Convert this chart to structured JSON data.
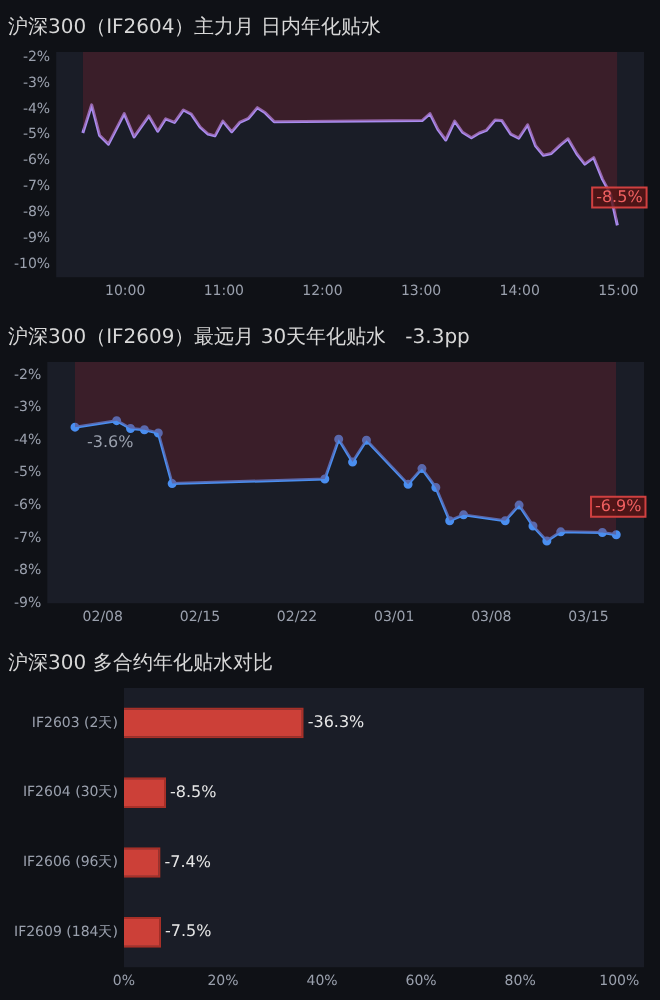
{
  "chart_data": [
    {
      "type": "area",
      "title": "沪深300（IF2604）主力月 日内年化贴水",
      "marker": "none",
      "x": [
        9.57,
        9.66,
        9.74,
        9.83,
        9.99,
        10.09,
        10.24,
        10.33,
        10.41,
        10.5,
        10.59,
        10.67,
        10.76,
        10.84,
        10.91,
        10.99,
        11.08,
        11.16,
        11.25,
        11.34,
        11.42,
        11.51,
        13.01,
        13.09,
        13.17,
        13.25,
        13.34,
        13.42,
        13.51,
        13.59,
        13.66,
        13.75,
        13.82,
        13.91,
        13.99,
        14.08,
        14.16,
        14.24,
        14.32,
        14.41,
        14.49,
        14.58,
        14.66,
        14.75,
        14.84,
        14.92,
        14.99
      ],
      "series": [
        {
          "type": "area",
          "color": "#78232d",
          "values": [
            -4.93,
            -3.84,
            -5.02,
            -5.36,
            -4.18,
            -5.08,
            -4.27,
            -4.86,
            -4.38,
            -4.52,
            -4.04,
            -4.2,
            -4.7,
            -4.97,
            -5.04,
            -4.47,
            -4.88,
            -4.52,
            -4.36,
            -3.95,
            -4.15,
            -4.49,
            -4.45,
            -4.18,
            -4.79,
            -5.2,
            -4.47,
            -4.9,
            -5.11,
            -4.93,
            -4.83,
            -4.43,
            -4.45,
            -4.97,
            -5.13,
            -4.61,
            -5.42,
            -5.79,
            -5.72,
            -5.4,
            -5.15,
            -5.74,
            -6.13,
            -5.88,
            -6.72,
            -7.28,
            -8.5
          ]
        },
        {
          "type": "line",
          "color": "#a98cf0",
          "values": [
            -4.93,
            -3.84,
            -5.02,
            -5.36,
            -4.18,
            -5.08,
            -4.27,
            -4.86,
            -4.38,
            -4.52,
            -4.04,
            -4.2,
            -4.7,
            -4.97,
            -5.04,
            -4.47,
            -4.88,
            -4.52,
            -4.36,
            -3.95,
            -4.15,
            -4.49,
            -4.45,
            -4.18,
            -4.79,
            -5.2,
            -4.47,
            -4.9,
            -5.11,
            -4.93,
            -4.83,
            -4.43,
            -4.45,
            -4.97,
            -5.13,
            -4.61,
            -5.42,
            -5.79,
            -5.72,
            -5.4,
            -5.15,
            -5.74,
            -6.13,
            -5.88,
            -6.72,
            -7.28,
            -8.5
          ],
          "value_labels": [
            null,
            null,
            null,
            null,
            null,
            null,
            null,
            null,
            null,
            null,
            null,
            null,
            null,
            null,
            null,
            null,
            null,
            null,
            null,
            null,
            null,
            null,
            null,
            null,
            null,
            null,
            null,
            null,
            null,
            null,
            null,
            null,
            null,
            null,
            null,
            null,
            null,
            null,
            null,
            null,
            null,
            null,
            null,
            null,
            null,
            null,
            "-8.5%"
          ]
        }
      ],
      "xlim": [
        9.3,
        15.26
      ],
      "xticks": [
        {
          "value": 10,
          "label": "10:00"
        },
        {
          "value": 11,
          "label": "11:00"
        },
        {
          "value": 12,
          "label": "12:00"
        },
        {
          "value": 13,
          "label": "13:00"
        },
        {
          "value": 14,
          "label": "14:00"
        },
        {
          "value": 15,
          "label": "15:00"
        }
      ],
      "ylim": [
        -10.5,
        -1.8
      ],
      "yticks": [
        {
          "value": -2,
          "label": "-2%"
        },
        {
          "value": -3,
          "label": "-3%"
        },
        {
          "value": -4,
          "label": "-4%"
        },
        {
          "value": -5,
          "label": "-5%"
        },
        {
          "value": -6,
          "label": "-6%"
        },
        {
          "value": -7,
          "label": "-7%"
        },
        {
          "value": -8,
          "label": "-8%"
        },
        {
          "value": -9,
          "label": "-9%"
        },
        {
          "value": -10,
          "label": "-10%"
        }
      ]
    },
    {
      "type": "area",
      "title": "沪深300（IF2609）最远月 30天年化贴水   -3.3pp",
      "x": [
        "--02-06",
        "--02-09",
        "--02-10",
        "--02-11",
        "--02-12",
        "--02-13",
        "--02-24",
        "--02-25",
        "--02-26",
        "--02-27",
        "--03-02",
        "--03-03",
        "--03-04",
        "--03-05",
        "--03-06",
        "--03-09",
        "--03-10",
        "--03-11",
        "--03-12",
        "--03-13",
        "--03-16",
        "--03-17"
      ],
      "series": [
        {
          "type": "area",
          "color": "#78232d",
          "values": [
            -3.6,
            -3.4,
            -3.64,
            -3.68,
            -3.78,
            -5.33,
            -5.19,
            -3.97,
            -4.67,
            -4.0,
            -5.35,
            -4.87,
            -5.45,
            -6.47,
            -6.29,
            -6.47,
            -5.99,
            -6.63,
            -7.09,
            -6.81,
            -6.83,
            -6.9
          ]
        },
        {
          "type": "line",
          "marker": "circle",
          "color": "#4a8ef0",
          "values": [
            -3.6,
            -3.4,
            -3.64,
            -3.68,
            -3.78,
            -5.33,
            -5.19,
            -3.97,
            -4.67,
            -4.0,
            -5.35,
            -4.87,
            -5.45,
            -6.47,
            -6.29,
            -6.47,
            -5.99,
            -6.63,
            -7.09,
            -6.81,
            -6.83,
            -6.9
          ],
          "value_labels": [
            "-3.6%",
            null,
            null,
            null,
            null,
            null,
            null,
            null,
            null,
            null,
            null,
            null,
            null,
            null,
            null,
            null,
            null,
            null,
            null,
            null,
            null,
            "-6.9%"
          ]
        }
      ],
      "xlim": [
        "--02-04",
        "--03-19"
      ],
      "xticks": [
        {
          "value": "--02-08",
          "label": "02/08"
        },
        {
          "value": "--02-15",
          "label": "02/15"
        },
        {
          "value": "--02-22",
          "label": "02/22"
        },
        {
          "value": "--03-01",
          "label": "03/01"
        },
        {
          "value": "--03-08",
          "label": "03/08"
        },
        {
          "value": "--03-15",
          "label": "03/15"
        }
      ],
      "ylim": [
        -9,
        -1.6
      ],
      "yticks": [
        {
          "value": -2,
          "label": "-2%"
        },
        {
          "value": -3,
          "label": "-3%"
        },
        {
          "value": -4,
          "label": "-4%"
        },
        {
          "value": -5,
          "label": "-5%"
        },
        {
          "value": -6,
          "label": "-6%"
        },
        {
          "value": -7,
          "label": "-7%"
        },
        {
          "value": -8,
          "label": "-8%"
        },
        {
          "value": -9,
          "label": "-9%"
        }
      ]
    },
    {
      "type": "bar",
      "orientation": "horizontal",
      "title": "沪深300 多合约年化贴水对比",
      "categories": [
        "IF2603 (2天)",
        "IF2604 (30天)",
        "IF2606 (96天)",
        "IF2609 (184天)"
      ],
      "values": [
        36.3,
        8.5,
        7.4,
        7.5
      ],
      "color": "#cc4038",
      "annotations": [
        {
          "text": "-36.3%",
          "x": 36.3,
          "y": "IF2603 (2天)"
        },
        {
          "text": "-8.5%",
          "x": 8.5,
          "y": "IF2604 (30天)"
        },
        {
          "text": "-7.4%",
          "x": 7.4,
          "y": "IF2606 (96天)"
        },
        {
          "text": "-7.5%",
          "x": 7.5,
          "y": "IF2609 (184天)"
        }
      ],
      "xlim": [
        0,
        105
      ],
      "xticks": [
        {
          "value": 0,
          "label": "0%"
        },
        {
          "value": 20,
          "label": "20%"
        },
        {
          "value": 40,
          "label": "40%"
        },
        {
          "value": 60,
          "label": "60%"
        },
        {
          "value": 80,
          "label": "80%"
        },
        {
          "value": 100,
          "label": "100%"
        }
      ]
    }
  ]
}
